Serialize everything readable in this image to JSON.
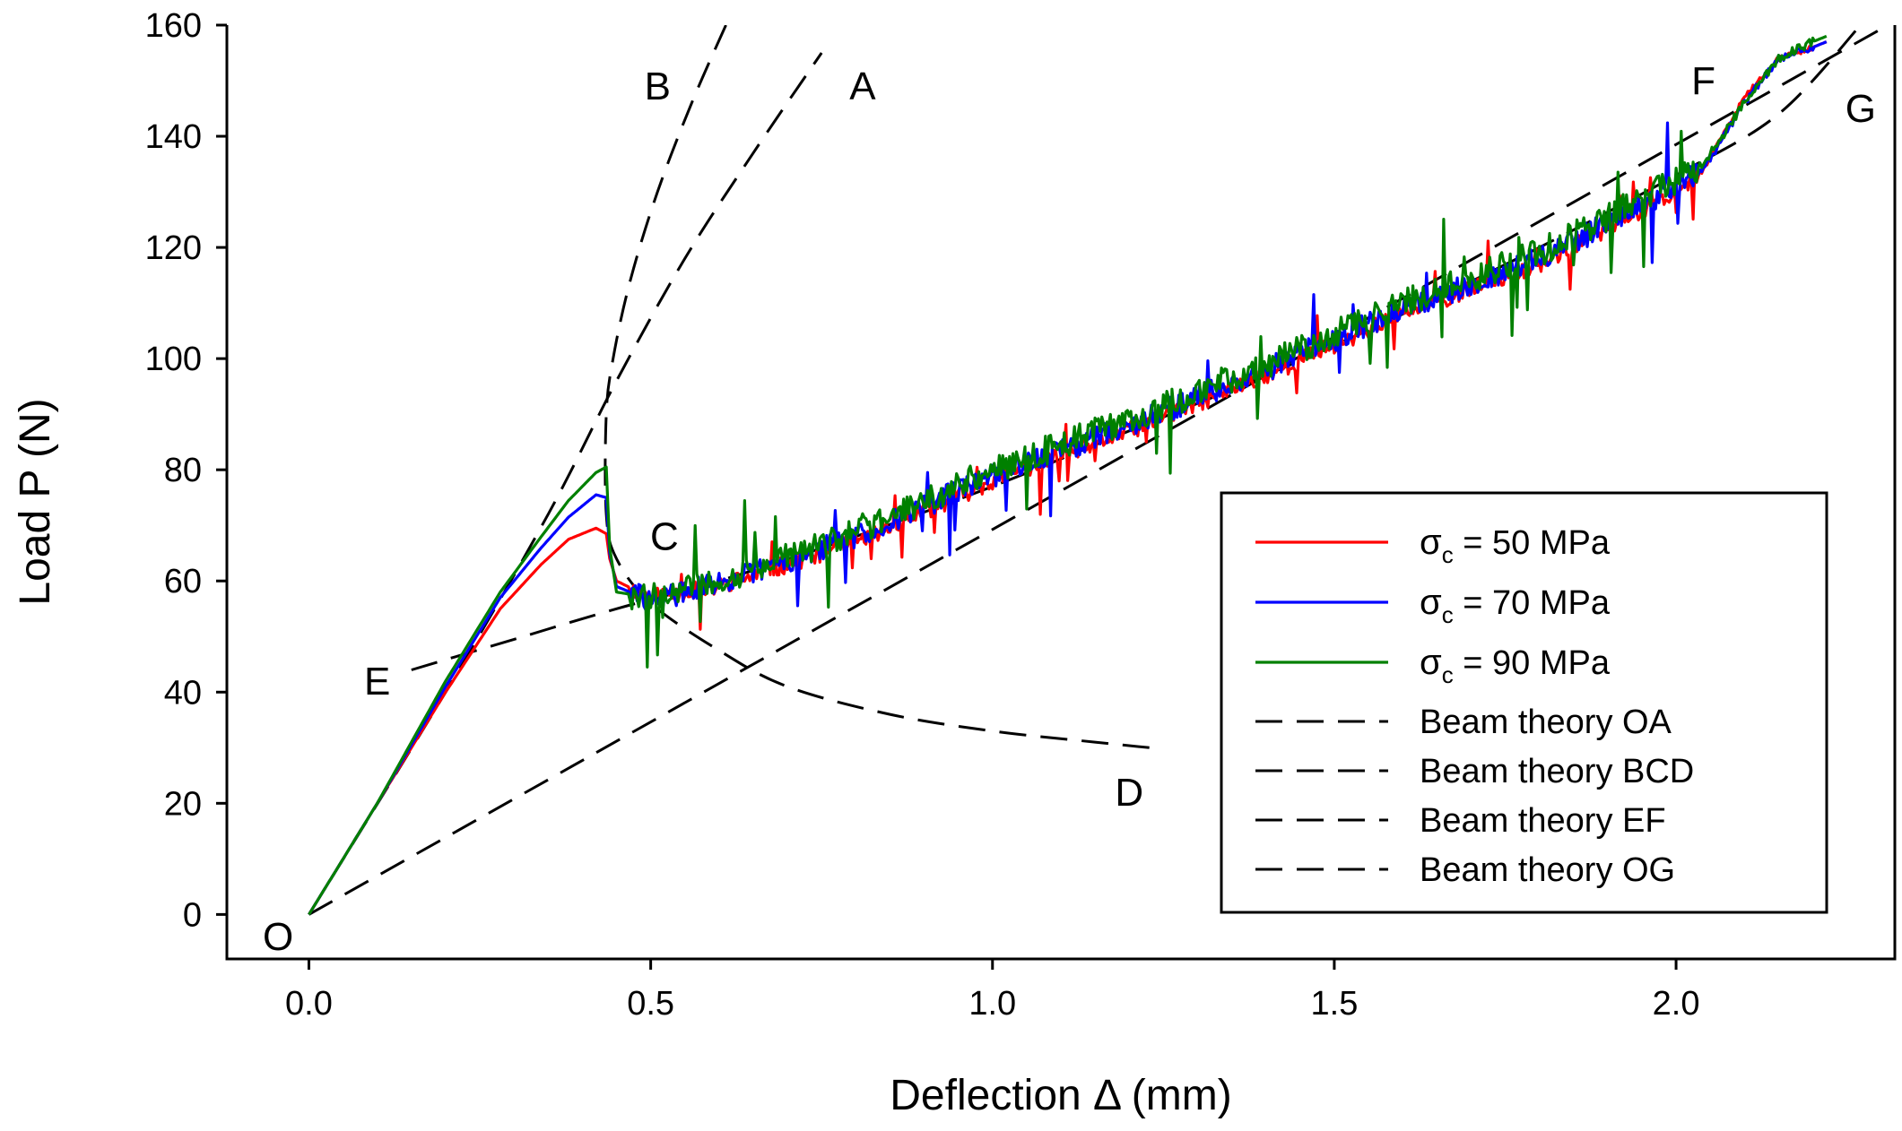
{
  "chart_data": {
    "type": "line",
    "title": "",
    "xlabel": "Deflection Δ (mm)",
    "ylabel": "Load P (N)",
    "xlim": [
      -0.12,
      2.32
    ],
    "ylim": [
      -8,
      160
    ],
    "xticks": [
      0.0,
      0.5,
      1.0,
      1.5,
      2.0
    ],
    "xtick_labels": [
      "0.0",
      "0.5",
      "1.0",
      "1.5",
      "2.0"
    ],
    "yticks": [
      0,
      20,
      40,
      60,
      80,
      100,
      120,
      140,
      160
    ],
    "ytick_labels": [
      "0",
      "20",
      "40",
      "60",
      "80",
      "100",
      "120",
      "140",
      "160"
    ],
    "grid": false,
    "legend_position": "bottom-right",
    "colors": {
      "red": "#ff0000",
      "blue": "#0000ff",
      "green": "#008000",
      "black": "#000000"
    },
    "series": [
      {
        "name": "σc = 50 MPa",
        "legend_main": "σ",
        "legend_sub": "c",
        "legend_rest": " = 50 MPa",
        "color": "#ff0000",
        "style": "solid",
        "noise_seed": 11,
        "noise_amp": 1.6,
        "x": [
          0,
          0.1,
          0.2,
          0.28,
          0.34,
          0.38,
          0.42,
          0.435,
          0.44,
          0.45,
          0.5,
          0.6,
          0.8,
          1.0,
          1.2,
          1.4,
          1.6,
          1.8,
          2.0,
          2.04,
          2.1,
          2.15,
          2.2,
          2.22
        ],
        "y": [
          0,
          20,
          40,
          55,
          63,
          67.5,
          69.5,
          68.5,
          64,
          60,
          57,
          59,
          67,
          78,
          87,
          97,
          108,
          117,
          130,
          134,
          147,
          154,
          156,
          157
        ]
      },
      {
        "name": "σc = 70 MPa",
        "legend_main": "σ",
        "legend_sub": "c",
        "legend_rest": " = 70 MPa",
        "color": "#0000ff",
        "style": "solid",
        "noise_seed": 29,
        "noise_amp": 2.2,
        "x": [
          0,
          0.1,
          0.2,
          0.28,
          0.34,
          0.38,
          0.42,
          0.435,
          0.44,
          0.45,
          0.5,
          0.6,
          0.8,
          1.0,
          1.2,
          1.4,
          1.6,
          1.8,
          2.0,
          2.04,
          2.1,
          2.15,
          2.2,
          2.22
        ],
        "y": [
          0,
          20,
          41,
          57,
          66,
          71.5,
          75.5,
          75,
          65,
          59,
          56.5,
          59.5,
          68,
          79,
          88,
          98,
          109,
          118,
          131,
          134,
          146,
          154,
          156,
          157
        ]
      },
      {
        "name": "σc = 90 MPa",
        "legend_main": "σ",
        "legend_sub": "c",
        "legend_rest": " = 90 MPa",
        "color": "#008000",
        "style": "solid",
        "noise_seed": 47,
        "noise_amp": 2.6,
        "x": [
          0,
          0.1,
          0.2,
          0.28,
          0.34,
          0.38,
          0.42,
          0.435,
          0.44,
          0.45,
          0.5,
          0.6,
          0.8,
          1.0,
          1.2,
          1.4,
          1.6,
          1.8,
          2.0,
          2.04,
          2.1,
          2.15,
          2.2,
          2.22
        ],
        "y": [
          0,
          20,
          42,
          58,
          68,
          74.5,
          79.5,
          80.5,
          66,
          58,
          57,
          60,
          68.5,
          80,
          89,
          99,
          110,
          119,
          132,
          135,
          146,
          154,
          157,
          158
        ]
      },
      {
        "name": "Beam theory OA",
        "color": "#000000",
        "style": "dashed",
        "x": [
          0,
          0.2,
          0.35,
          0.45,
          0.55,
          0.65,
          0.75
        ],
        "y": [
          0,
          40,
          72,
          96,
          118,
          137,
          155
        ]
      },
      {
        "name": "Beam theory BCD",
        "color": "#000000",
        "style": "dashed",
        "x": [
          0.61,
          0.56,
          0.51,
          0.47,
          0.445,
          0.435,
          0.435,
          0.45,
          0.5,
          0.6,
          0.7,
          0.85,
          1.0,
          1.15,
          1.23
        ],
        "y": [
          160,
          146,
          130,
          114,
          100,
          90,
          72,
          64,
          56,
          47.5,
          41,
          36,
          33,
          31,
          30
        ]
      },
      {
        "name": "Beam theory EF",
        "color": "#000000",
        "style": "dashed",
        "x": [
          0.15,
          0.3,
          0.45,
          0.6,
          0.8,
          1.0,
          1.2,
          1.4,
          1.6,
          1.8,
          2.0,
          2.15,
          2.27
        ],
        "y": [
          44,
          49.5,
          55,
          60,
          68,
          77,
          87,
          97,
          108,
          120,
          133,
          144,
          160
        ]
      },
      {
        "name": "Beam theory OG",
        "color": "#000000",
        "style": "dashed",
        "x": [
          0,
          2.31
        ],
        "y": [
          0,
          160
        ]
      }
    ],
    "point_labels": [
      {
        "text": "O",
        "x": -0.045,
        "y": -4
      },
      {
        "text": "A",
        "x": 0.81,
        "y": 149
      },
      {
        "text": "B",
        "x": 0.51,
        "y": 149
      },
      {
        "text": "C",
        "x": 0.52,
        "y": 68
      },
      {
        "text": "D",
        "x": 1.2,
        "y": 22
      },
      {
        "text": "E",
        "x": 0.1,
        "y": 42
      },
      {
        "text": "F",
        "x": 2.04,
        "y": 150
      },
      {
        "text": "G",
        "x": 2.27,
        "y": 145
      }
    ]
  }
}
